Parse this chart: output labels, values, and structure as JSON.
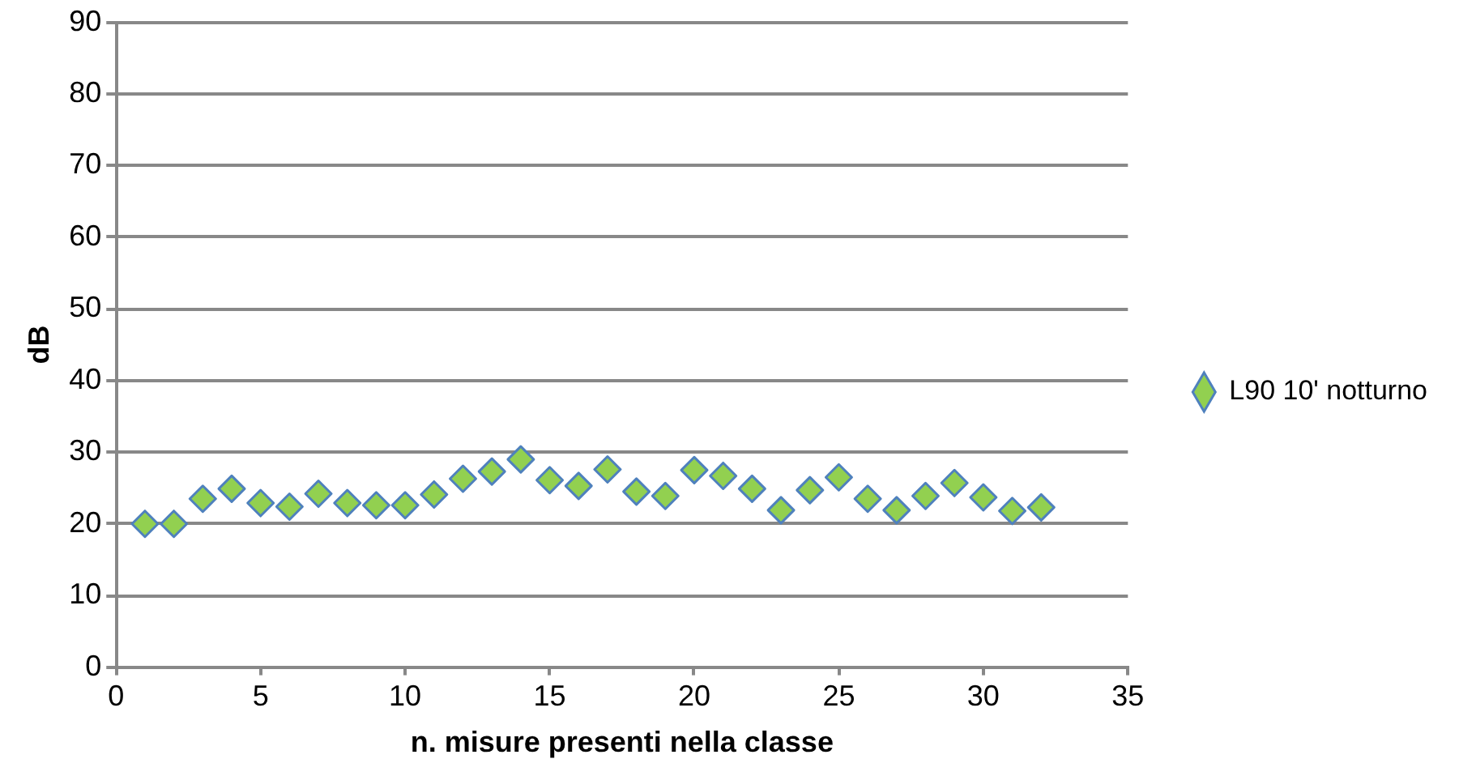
{
  "chart_data": {
    "type": "scatter",
    "xlabel": "n. misure presenti nella classe",
    "ylabel": "dB",
    "x": [
      1,
      2,
      3,
      4,
      5,
      6,
      7,
      8,
      9,
      10,
      11,
      12,
      13,
      14,
      15,
      16,
      17,
      18,
      19,
      20,
      21,
      22,
      23,
      24,
      25,
      26,
      27,
      28,
      29,
      30,
      31,
      32
    ],
    "series": [
      {
        "name": "L90 10' notturno",
        "color": "#92d050",
        "values": [
          20,
          20,
          23.5,
          24.9,
          22.9,
          22.4,
          24.2,
          22.9,
          22.6,
          22.6,
          24.1,
          26.3,
          27.3,
          29,
          26.1,
          25.3,
          27.6,
          24.5,
          23.9,
          27.5,
          26.7,
          24.9,
          21.9,
          24.7,
          26.5,
          23.5,
          21.9,
          23.9,
          25.7,
          23.7,
          21.8,
          22.3
        ]
      }
    ],
    "xlim": [
      0,
      35
    ],
    "xticks": [
      0,
      5,
      10,
      15,
      20,
      25,
      30,
      35
    ],
    "ylim": [
      0,
      90
    ],
    "yticks": [
      0,
      10,
      20,
      30,
      40,
      50,
      60,
      70,
      80,
      90
    ],
    "grid": "y",
    "legend": "right",
    "marker": "diamond"
  }
}
